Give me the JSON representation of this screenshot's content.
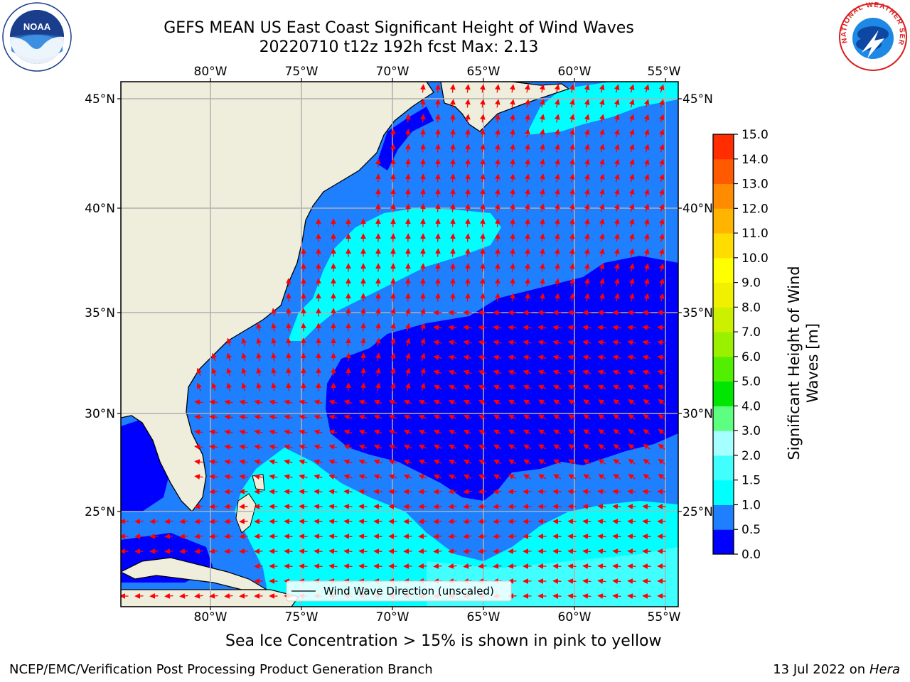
{
  "title": {
    "line1": "GEFS MEAN US East Coast Significant Height of Wind Waves",
    "line2": "20220710 t12z 192h fcst   Max: 2.13"
  },
  "map": {
    "lon_ticks": [
      "80°W",
      "75°W",
      "70°W",
      "65°W",
      "60°W",
      "55°W"
    ],
    "lat_ticks": [
      "45°N",
      "40°N",
      "35°N",
      "30°N",
      "25°N"
    ],
    "legend_label": "Wind Wave Direction (unscaled)",
    "arrow_color": "#ff0000",
    "land_color": "#efeedc"
  },
  "colorbar": {
    "label_line1": "Significant Height of Wind",
    "label_line2": "Waves [m]",
    "ticks": [
      "15.0",
      "14.0",
      "13.0",
      "12.0",
      "11.0",
      "10.0",
      "9.0",
      "8.0",
      "7.0",
      "6.0",
      "5.0",
      "4.0",
      "3.0",
      "2.0",
      "1.5",
      "1.0",
      "0.5",
      "0.0"
    ],
    "colors": [
      "#0000ff",
      "#1e7fff",
      "#00ffff",
      "#41ffff",
      "#a6ffff",
      "#5cff7f",
      "#00e600",
      "#52f000",
      "#9bf000",
      "#cbf000",
      "#f0f000",
      "#ffff00",
      "#ffdd00",
      "#ffb400",
      "#ff8c00",
      "#ff5a00",
      "#ff2d00"
    ]
  },
  "subtitle": "Sea Ice Concentration > 15% is shown in pink to yellow",
  "footer": {
    "left": "NCEP/EMC/Verification Post Processing Product Generation Branch",
    "right_prefix": "13 Jul 2022 on ",
    "right_host": "Hera"
  },
  "logos": {
    "noaa_text": "NOAA",
    "nws_text": "NATIONAL WEATHER SERVICE"
  }
}
